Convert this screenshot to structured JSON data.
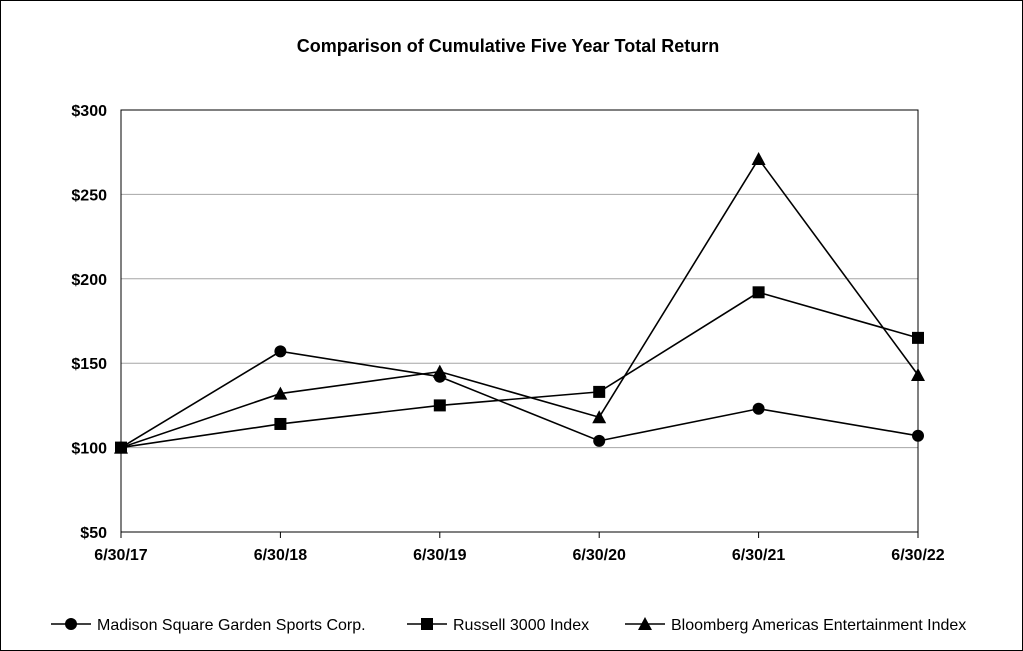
{
  "chart_data": {
    "type": "line",
    "title": "Comparison of Cumulative Five Year Total Return",
    "xlabel": "",
    "ylabel": "",
    "categories": [
      "6/30/17",
      "6/30/18",
      "6/30/19",
      "6/30/20",
      "6/30/21",
      "6/30/22"
    ],
    "ylim": [
      50,
      300
    ],
    "yticks": [
      "$50",
      "$100",
      "$150",
      "$200",
      "$250",
      "$300"
    ],
    "ytick_values": [
      50,
      100,
      150,
      200,
      250,
      300
    ],
    "grid": "horizontal",
    "legend_position": "bottom",
    "series": [
      {
        "name": "Madison Square Garden Sports Corp.",
        "marker": "circle",
        "color": "#000000",
        "values": [
          100,
          157,
          142,
          104,
          123,
          107
        ]
      },
      {
        "name": "Russell 3000 Index",
        "marker": "square",
        "color": "#000000",
        "values": [
          100,
          114,
          125,
          133,
          192,
          165
        ]
      },
      {
        "name": "Bloomberg Americas Entertainment Index",
        "marker": "triangle",
        "color": "#000000",
        "values": [
          100,
          132,
          145,
          118,
          271,
          143
        ]
      }
    ]
  }
}
